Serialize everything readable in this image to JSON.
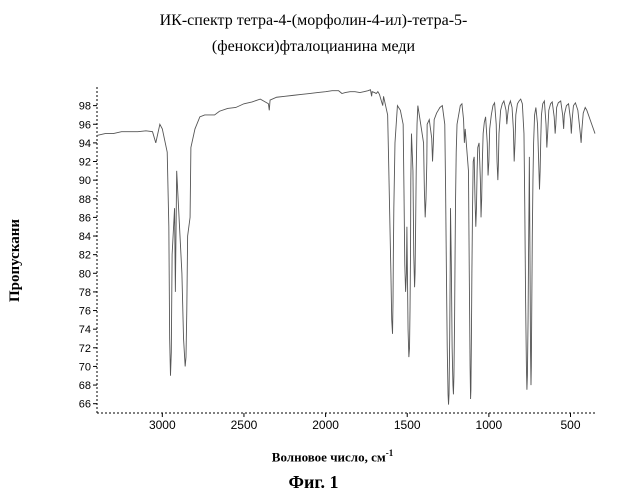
{
  "title_line1": "ИК-спектр тетра-4-(морфолин-4-ил)-тетра-5-",
  "title_line2": "(фенокси)фталоцианина меди",
  "yaxis_label": "Пропускани",
  "xaxis_label_main": "Волновое число, см",
  "xaxis_label_sup": "-1",
  "figure_caption": "Фиг. 1",
  "chart": {
    "type": "line",
    "background_color": "#ffffff",
    "line_color": "#555555",
    "axis_color": "#000000",
    "axis_dash": "2 2",
    "xlim": [
      3400,
      350
    ],
    "ylim": [
      65,
      100
    ],
    "xticks": [
      3000,
      2500,
      2000,
      1500,
      1000,
      500
    ],
    "yticks": [
      66,
      68,
      70,
      72,
      74,
      76,
      78,
      80,
      82,
      84,
      86,
      88,
      90,
      92,
      94,
      96,
      98
    ],
    "xtick_fontsize": 12,
    "ytick_fontsize": 11,
    "title_fontsize": 16,
    "axis_label_fontsize": 14,
    "line_width": 0.9,
    "data": [
      [
        3400,
        94.8
      ],
      [
        3350,
        95.0
      ],
      [
        3300,
        95.0
      ],
      [
        3250,
        95.2
      ],
      [
        3200,
        95.2
      ],
      [
        3150,
        95.2
      ],
      [
        3100,
        95.3
      ],
      [
        3060,
        95.2
      ],
      [
        3040,
        94.0
      ],
      [
        3015,
        96.0
      ],
      [
        3000,
        95.5
      ],
      [
        2970,
        93.0
      ],
      [
        2960,
        85.0
      ],
      [
        2955,
        73.0
      ],
      [
        2950,
        69.0
      ],
      [
        2945,
        71.5
      ],
      [
        2940,
        82.0
      ],
      [
        2925,
        87.0
      ],
      [
        2920,
        78.0
      ],
      [
        2912,
        91.0
      ],
      [
        2880,
        80.0
      ],
      [
        2870,
        73.0
      ],
      [
        2860,
        70.0
      ],
      [
        2855,
        71.0
      ],
      [
        2850,
        76.0
      ],
      [
        2845,
        84.0
      ],
      [
        2830,
        86.0
      ],
      [
        2825,
        93.5
      ],
      [
        2800,
        95.5
      ],
      [
        2770,
        96.8
      ],
      [
        2740,
        97.0
      ],
      [
        2680,
        97.0
      ],
      [
        2650,
        97.4
      ],
      [
        2600,
        97.7
      ],
      [
        2550,
        97.8
      ],
      [
        2500,
        98.2
      ],
      [
        2450,
        98.4
      ],
      [
        2400,
        98.7
      ],
      [
        2350,
        98.2
      ],
      [
        2345,
        97.5
      ],
      [
        2340,
        98.6
      ],
      [
        2300,
        98.9
      ],
      [
        2250,
        99.0
      ],
      [
        2200,
        99.1
      ],
      [
        2150,
        99.2
      ],
      [
        2100,
        99.3
      ],
      [
        2050,
        99.4
      ],
      [
        2000,
        99.5
      ],
      [
        1960,
        99.6
      ],
      [
        1920,
        99.6
      ],
      [
        1900,
        99.3
      ],
      [
        1880,
        99.4
      ],
      [
        1850,
        99.5
      ],
      [
        1820,
        99.5
      ],
      [
        1790,
        99.4
      ],
      [
        1765,
        99.5
      ],
      [
        1740,
        99.6
      ],
      [
        1725,
        99.7
      ],
      [
        1718,
        99.0
      ],
      [
        1715,
        99.5
      ],
      [
        1700,
        99.4
      ],
      [
        1690,
        99.3
      ],
      [
        1680,
        99.5
      ],
      [
        1670,
        99.2
      ],
      [
        1650,
        98.0
      ],
      [
        1645,
        99.0
      ],
      [
        1620,
        97.0
      ],
      [
        1615,
        93.0
      ],
      [
        1600,
        80.0
      ],
      [
        1595,
        75.0
      ],
      [
        1590,
        73.5
      ],
      [
        1587,
        77.0
      ],
      [
        1585,
        82.0
      ],
      [
        1582,
        87.0
      ],
      [
        1578,
        91.0
      ],
      [
        1575,
        94.0
      ],
      [
        1560,
        98.0
      ],
      [
        1542,
        97.5
      ],
      [
        1525,
        96.0
      ],
      [
        1520,
        89.0
      ],
      [
        1515,
        81.0
      ],
      [
        1510,
        78.0
      ],
      [
        1505,
        80.0
      ],
      [
        1502,
        85.0
      ],
      [
        1495,
        74.0
      ],
      [
        1490,
        71.0
      ],
      [
        1486,
        72.0
      ],
      [
        1483,
        76.0
      ],
      [
        1480,
        82.0
      ],
      [
        1478,
        90.0
      ],
      [
        1474,
        95.0
      ],
      [
        1465,
        91.0
      ],
      [
        1460,
        82.0
      ],
      [
        1455,
        78.5
      ],
      [
        1452,
        80.0
      ],
      [
        1448,
        86.0
      ],
      [
        1445,
        91.0
      ],
      [
        1440,
        96.0
      ],
      [
        1435,
        98.0
      ],
      [
        1400,
        94.0
      ],
      [
        1395,
        89.0
      ],
      [
        1390,
        86.0
      ],
      [
        1385,
        88.0
      ],
      [
        1380,
        92.0
      ],
      [
        1378,
        96.0
      ],
      [
        1365,
        96.5
      ],
      [
        1350,
        94.5
      ],
      [
        1345,
        92.0
      ],
      [
        1340,
        94.0
      ],
      [
        1335,
        96.5
      ],
      [
        1320,
        97.2
      ],
      [
        1310,
        97.5
      ],
      [
        1300,
        97.8
      ],
      [
        1285,
        98.0
      ],
      [
        1270,
        96.0
      ],
      [
        1265,
        89.0
      ],
      [
        1260,
        80.0
      ],
      [
        1255,
        72.0
      ],
      [
        1250,
        67.0
      ],
      [
        1247,
        65.9
      ],
      [
        1244,
        67.0
      ],
      [
        1240,
        73.0
      ],
      [
        1237,
        80.0
      ],
      [
        1235,
        87.0
      ],
      [
        1230,
        81.0
      ],
      [
        1225,
        72.0
      ],
      [
        1220,
        68.0
      ],
      [
        1217,
        67.0
      ],
      [
        1214,
        69.0
      ],
      [
        1210,
        75.0
      ],
      [
        1207,
        82.0
      ],
      [
        1204,
        88.0
      ],
      [
        1200,
        93.0
      ],
      [
        1195,
        96.0
      ],
      [
        1185,
        97.0
      ],
      [
        1175,
        98.0
      ],
      [
        1165,
        98.2
      ],
      [
        1155,
        96.5
      ],
      [
        1150,
        94.0
      ],
      [
        1145,
        95.5
      ],
      [
        1125,
        91.0
      ],
      [
        1120,
        80.0
      ],
      [
        1115,
        70.0
      ],
      [
        1112,
        66.5
      ],
      [
        1110,
        67.5
      ],
      [
        1107,
        73.0
      ],
      [
        1104,
        80.0
      ],
      [
        1100,
        87.0
      ],
      [
        1096,
        92.0
      ],
      [
        1090,
        92.5
      ],
      [
        1085,
        88.0
      ],
      [
        1080,
        85.0
      ],
      [
        1076,
        87.0
      ],
      [
        1072,
        91.0
      ],
      [
        1068,
        93.5
      ],
      [
        1060,
        94.0
      ],
      [
        1052,
        90.0
      ],
      [
        1048,
        86.0
      ],
      [
        1044,
        88.0
      ],
      [
        1040,
        92.0
      ],
      [
        1035,
        95.0
      ],
      [
        1028,
        96.2
      ],
      [
        1020,
        96.8
      ],
      [
        1010,
        94.0
      ],
      [
        1005,
        90.5
      ],
      [
        1000,
        92.0
      ],
      [
        995,
        95.5
      ],
      [
        985,
        97.0
      ],
      [
        975,
        98.0
      ],
      [
        965,
        98.3
      ],
      [
        955,
        96.0
      ],
      [
        950,
        92.0
      ],
      [
        945,
        90.0
      ],
      [
        942,
        91.5
      ],
      [
        938,
        95.0
      ],
      [
        928,
        97.5
      ],
      [
        918,
        98.2
      ],
      [
        908,
        98.5
      ],
      [
        895,
        97.5
      ],
      [
        890,
        96.0
      ],
      [
        885,
        97.0
      ],
      [
        878,
        98.0
      ],
      [
        868,
        98.5
      ],
      [
        858,
        97.8
      ],
      [
        850,
        95.5
      ],
      [
        845,
        92.0
      ],
      [
        840,
        94.0
      ],
      [
        835,
        97.0
      ],
      [
        825,
        98.2
      ],
      [
        815,
        98.5
      ],
      [
        805,
        98.7
      ],
      [
        795,
        98.2
      ],
      [
        785,
        95.0
      ],
      [
        780,
        87.0
      ],
      [
        775,
        77.0
      ],
      [
        770,
        70.0
      ],
      [
        767,
        67.5
      ],
      [
        764,
        69.0
      ],
      [
        760,
        75.0
      ],
      [
        757,
        82.0
      ],
      [
        754,
        88.0
      ],
      [
        752,
        92.5
      ],
      [
        748,
        81.0
      ],
      [
        745,
        72.0
      ],
      [
        742,
        68.0
      ],
      [
        740,
        70.0
      ],
      [
        737,
        77.0
      ],
      [
        734,
        84.0
      ],
      [
        730,
        90.0
      ],
      [
        726,
        94.0
      ],
      [
        720,
        97.0
      ],
      [
        712,
        97.8
      ],
      [
        702,
        96.0
      ],
      [
        695,
        92.0
      ],
      [
        690,
        89.0
      ],
      [
        686,
        91.0
      ],
      [
        682,
        94.5
      ],
      [
        678,
        97.0
      ],
      [
        670,
        98.2
      ],
      [
        660,
        98.5
      ],
      [
        650,
        96.0
      ],
      [
        645,
        93.5
      ],
      [
        640,
        95.0
      ],
      [
        633,
        97.5
      ],
      [
        622,
        98.2
      ],
      [
        612,
        98.4
      ],
      [
        600,
        96.8
      ],
      [
        594,
        95.0
      ],
      [
        590,
        96.0
      ],
      [
        585,
        97.8
      ],
      [
        575,
        98.3
      ],
      [
        560,
        98.5
      ],
      [
        548,
        97.0
      ],
      [
        542,
        95.5
      ],
      [
        538,
        97.0
      ],
      [
        525,
        98.0
      ],
      [
        512,
        98.2
      ],
      [
        500,
        96.5
      ],
      [
        495,
        95.0
      ],
      [
        490,
        96.5
      ],
      [
        482,
        98.0
      ],
      [
        470,
        98.3
      ],
      [
        455,
        97.5
      ],
      [
        440,
        95.0
      ],
      [
        435,
        94.0
      ],
      [
        430,
        95.5
      ],
      [
        422,
        97.2
      ],
      [
        410,
        97.8
      ],
      [
        400,
        97.5
      ],
      [
        390,
        97.0
      ],
      [
        380,
        96.5
      ],
      [
        370,
        96.0
      ],
      [
        360,
        95.5
      ],
      [
        350,
        95.0
      ]
    ]
  }
}
